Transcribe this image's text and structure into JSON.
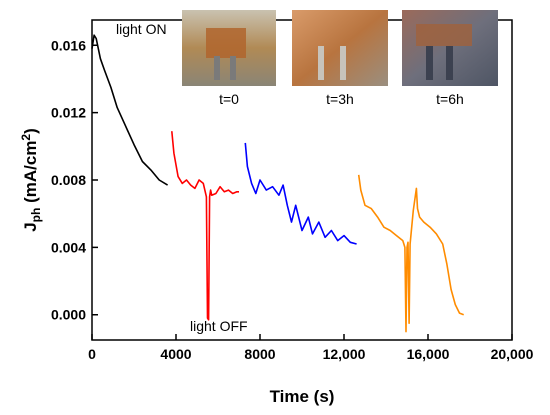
{
  "chart_data": {
    "type": "line",
    "title": "",
    "xlabel": "Time (s)",
    "ylabel_main": "J",
    "ylabel_sub": "ph",
    "ylabel_unit": " (mA/cm",
    "ylabel_sup": "2",
    "ylabel_close": ")",
    "xlim": [
      0,
      20000
    ],
    "ylim": [
      -0.0015,
      0.0175
    ],
    "x_ticks": [
      0,
      4000,
      8000,
      12000,
      16000,
      20000
    ],
    "x_tick_labels": [
      "0",
      "4000",
      "8000",
      "12,000",
      "16,000",
      "20,000"
    ],
    "y_ticks": [
      0.0,
      0.004,
      0.008,
      0.012,
      0.016
    ],
    "y_tick_labels": [
      "0.000",
      "0.004",
      "0.008",
      "0.012",
      "0.016"
    ],
    "grid": false,
    "annotations": [
      {
        "text": "light ON",
        "x": 1000,
        "y": 0.0168
      },
      {
        "text": "light OFF",
        "x": 5600,
        "y": -0.001
      }
    ],
    "photos": [
      {
        "label": "t=0"
      },
      {
        "label": "t=3h"
      },
      {
        "label": "t=6h"
      }
    ],
    "series": [
      {
        "color": "#000000",
        "x": [
          0,
          100,
          200,
          400,
          600,
          900,
          1200,
          1600,
          2000,
          2400,
          2800,
          3200,
          3600
        ],
        "y": [
          0.0158,
          0.0166,
          0.0164,
          0.0152,
          0.0145,
          0.0135,
          0.0123,
          0.0112,
          0.0101,
          0.0091,
          0.0086,
          0.008,
          0.0077
        ]
      },
      {
        "color": "#ff0000",
        "x": [
          3800,
          3900,
          4100,
          4300,
          4500,
          4700,
          4900,
          5100,
          5300,
          5450,
          5500,
          5550,
          5600,
          5650,
          5700,
          5900,
          6100,
          6300,
          6500,
          6700,
          6900,
          7000
        ],
        "y": [
          0.0109,
          0.0096,
          0.0082,
          0.0078,
          0.008,
          0.0077,
          0.0075,
          0.008,
          0.0078,
          0.007,
          -0.0002,
          -0.0003,
          0.007,
          0.0074,
          0.0071,
          0.0072,
          0.0076,
          0.0073,
          0.0074,
          0.0072,
          0.0073,
          0.0073
        ]
      },
      {
        "color": "#0000ff",
        "x": [
          7300,
          7400,
          7600,
          7800,
          8000,
          8300,
          8600,
          8900,
          9100,
          9300,
          9500,
          9700,
          10000,
          10300,
          10500,
          10800,
          11100,
          11400,
          11700,
          12000,
          12300,
          12600
        ],
        "y": [
          0.0102,
          0.0088,
          0.0078,
          0.0072,
          0.008,
          0.0074,
          0.0076,
          0.0071,
          0.0077,
          0.0065,
          0.0055,
          0.0065,
          0.005,
          0.0058,
          0.0048,
          0.0055,
          0.0046,
          0.005,
          0.0044,
          0.0047,
          0.0043,
          0.0042
        ]
      },
      {
        "color": "#ff8c00",
        "x": [
          12700,
          12800,
          13000,
          13300,
          13600,
          13900,
          14200,
          14500,
          14800,
          14900,
          14950,
          15000,
          15050,
          15100,
          15150,
          15300,
          15450,
          15500,
          15600,
          15800,
          16100,
          16400,
          16700,
          16900,
          17100,
          17300,
          17500,
          17700
        ],
        "y": [
          0.0083,
          0.0074,
          0.0065,
          0.0063,
          0.0058,
          0.0052,
          0.005,
          0.0047,
          0.0044,
          0.004,
          -0.001,
          0.004,
          0.0043,
          -0.0005,
          0.0042,
          0.0062,
          0.0075,
          0.0063,
          0.0058,
          0.0055,
          0.0052,
          0.0048,
          0.0042,
          0.003,
          0.0015,
          0.0006,
          0.0001,
          0.0
        ]
      }
    ]
  }
}
